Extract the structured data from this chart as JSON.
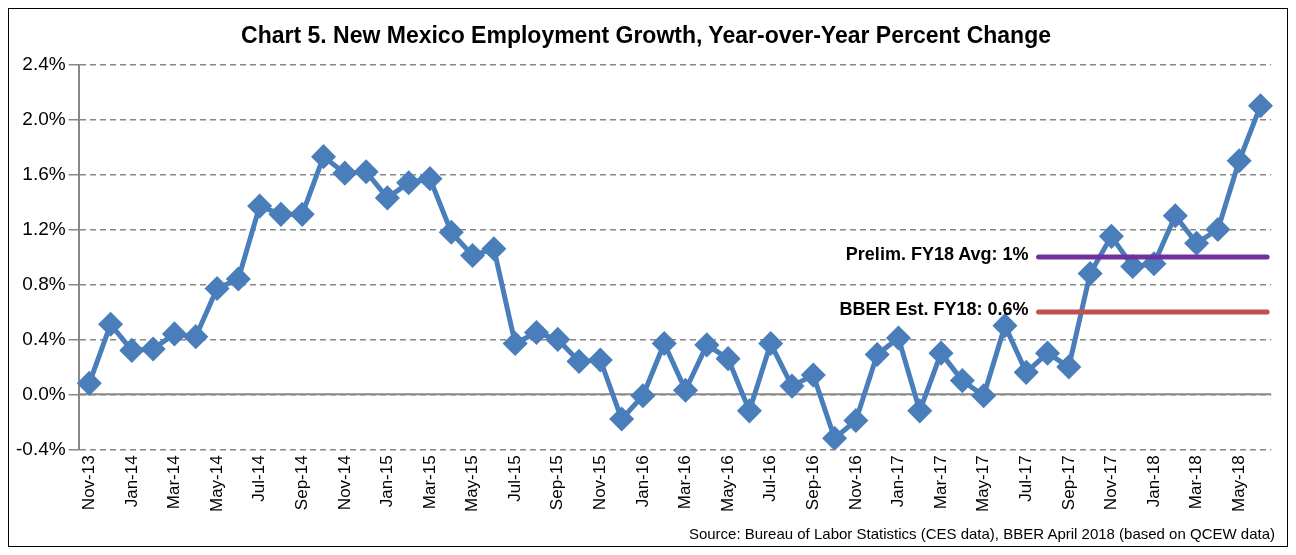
{
  "chart_data": {
    "type": "line",
    "title": "Chart 5. New Mexico Employment Growth, Year-over-Year Percent Change",
    "categories": [
      "Nov-13",
      null,
      "Jan-14",
      null,
      "Mar-14",
      null,
      "May-14",
      null,
      "Jul-14",
      null,
      "Sep-14",
      null,
      "Nov-14",
      null,
      "Jan-15",
      null,
      "Mar-15",
      null,
      "May-15",
      null,
      "Jul-15",
      null,
      "Sep-15",
      null,
      "Nov-15",
      null,
      "Jan-16",
      null,
      "Mar-16",
      null,
      "May-16",
      null,
      "Jul-16",
      null,
      "Sep-16",
      null,
      "Nov-16",
      null,
      "Jan-17",
      null,
      "Mar-17",
      null,
      "May-17",
      null,
      "Jul-17",
      null,
      "Sep-17",
      null,
      "Nov-17",
      null,
      "Jan-18",
      null,
      "Mar-18",
      null,
      "May-18",
      null
    ],
    "series": [
      {
        "color": "#4a7ebb",
        "values": [
          0.08,
          0.51,
          0.32,
          0.33,
          0.44,
          0.42,
          0.77,
          0.84,
          1.37,
          1.31,
          1.31,
          1.73,
          1.61,
          1.62,
          1.43,
          1.54,
          1.57,
          1.18,
          1.01,
          1.06,
          0.37,
          0.45,
          0.4,
          0.24,
          0.25,
          -0.18,
          -0.01,
          0.37,
          0.03,
          0.36,
          0.26,
          -0.12,
          0.37,
          0.06,
          0.14,
          -0.32,
          -0.19,
          0.29,
          0.41,
          -0.12,
          0.3,
          0.1,
          -0.01,
          0.5,
          0.16,
          0.3,
          0.2,
          0.88,
          1.15,
          0.93,
          0.95,
          1.3,
          1.1,
          1.2,
          1.7,
          2.1
        ]
      }
    ],
    "ylim": [
      -0.4,
      2.4
    ],
    "yticks": [
      {
        "value": -0.4,
        "label": "-0.4%"
      },
      {
        "value": 0,
        "label": "0.0%"
      },
      {
        "value": 0.4,
        "label": "0.4%"
      },
      {
        "value": 0.8,
        "label": "0.8%"
      },
      {
        "value": 1.2,
        "label": "1.2%"
      },
      {
        "value": 1.6,
        "label": "1.6%"
      },
      {
        "value": 2.0,
        "label": "2.0%"
      },
      {
        "value": 2.4,
        "label": "2.4%"
      }
    ],
    "grid": "y",
    "marker": "diamond",
    "line_style": "solid",
    "legend": false,
    "ref_lines": [
      {
        "axis": "y",
        "value": 1.0,
        "label": "Prelim. FY18 Avg: 1%",
        "color": "#7030a0"
      },
      {
        "axis": "y",
        "value": 0.6,
        "label": "BBER Est. FY18: 0.6%",
        "color": "#c0504d"
      }
    ],
    "annotations": [
      "Source: Bureau of Labor Statistics (CES data), BBER April 2018 (based on QCEW data)"
    ]
  }
}
